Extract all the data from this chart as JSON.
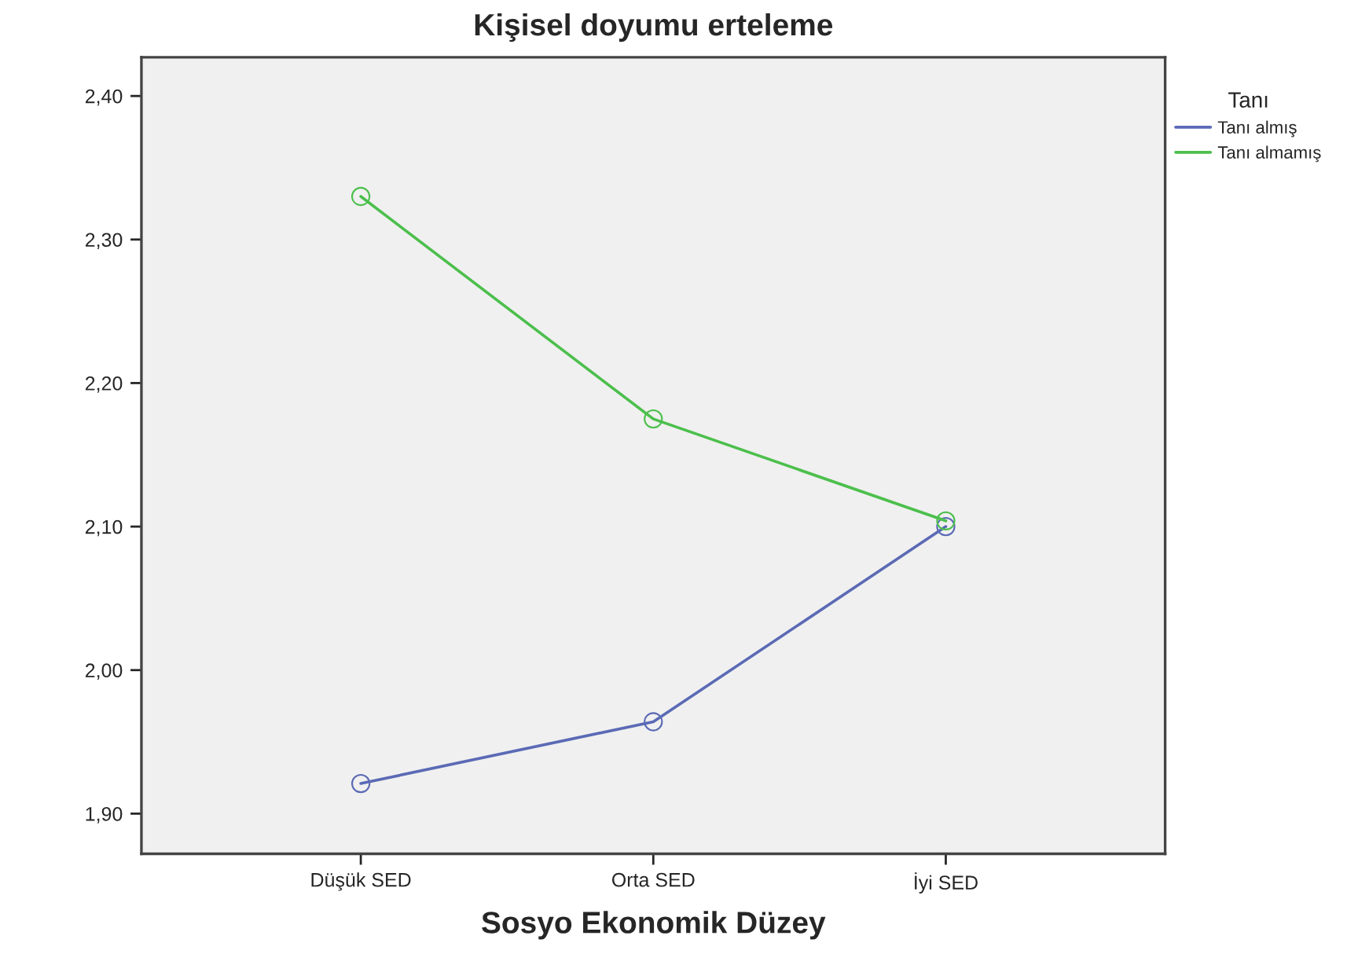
{
  "chart_data": {
    "type": "line",
    "title": "Kişisel doyumu erteleme",
    "xlabel": "Sosyo Ekonomik Düzey",
    "legend_title": "Tanı",
    "categories": [
      "Düşük SED",
      "Orta SED",
      "İyi SED"
    ],
    "series": [
      {
        "name": "Tanı almış",
        "color": "#5b6ab5",
        "values": [
          1.921,
          1.964,
          2.1
        ]
      },
      {
        "name": "Tanı almamış",
        "color": "#4cbf4c",
        "values": [
          2.33,
          2.175,
          2.104
        ]
      }
    ],
    "ylim": [
      1.872,
      2.427
    ],
    "yticks": [
      {
        "value": 1.9,
        "label": "1,90"
      },
      {
        "value": 2.0,
        "label": "2,00"
      },
      {
        "value": 2.1,
        "label": "2,10"
      },
      {
        "value": 2.2,
        "label": "2,20"
      },
      {
        "value": 2.3,
        "label": "2,30"
      },
      {
        "value": 2.4,
        "label": "2,40"
      }
    ],
    "marker": "circle",
    "line_style": "solid",
    "grid": false,
    "legend": "top right"
  }
}
